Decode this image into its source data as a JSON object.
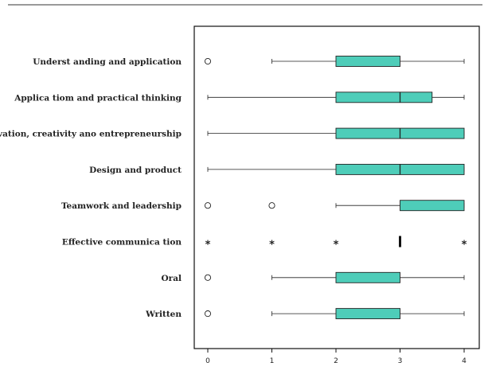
{
  "chart_data": {
    "type": "boxplot",
    "orientation": "horizontal",
    "xlim": [
      -0.2,
      4.2
    ],
    "xticks": [
      "0",
      "1",
      "2",
      "3",
      "4"
    ],
    "box_color": "#4ecdb9",
    "categories": [
      "Underst anding and application",
      "Applica tiom and practical thinking",
      "Innovation, creativity ano entrepreneurship",
      "Design and product",
      "Teamwork and leadership",
      "Effective communica tion",
      "Oral",
      "Written"
    ],
    "boxes": [
      {
        "whisker_low": 1,
        "q1": 2,
        "median": 3,
        "q3": 3,
        "whisker_high": 4,
        "outliers": [
          0
        ],
        "extremes": []
      },
      {
        "whisker_low": 0,
        "q1": 2,
        "median": 3,
        "q3": 3.5,
        "whisker_high": 4,
        "outliers": [],
        "extremes": []
      },
      {
        "whisker_low": 0,
        "q1": 2,
        "median": 3,
        "q3": 4,
        "whisker_high": 4,
        "outliers": [],
        "extremes": []
      },
      {
        "whisker_low": 0,
        "q1": 2,
        "median": 3,
        "q3": 4,
        "whisker_high": 4,
        "outliers": [],
        "extremes": []
      },
      {
        "whisker_low": 2,
        "q1": 3,
        "median": 3,
        "q3": 4,
        "whisker_high": 4,
        "outliers": [
          0,
          1
        ],
        "extremes": []
      },
      {
        "whisker_low": 3,
        "q1": 3,
        "median": 3,
        "q3": 3,
        "whisker_high": 3,
        "outliers": [],
        "extremes": [
          0,
          1,
          2,
          4
        ]
      },
      {
        "whisker_low": 1,
        "q1": 2,
        "median": 3,
        "q3": 3,
        "whisker_high": 4,
        "outliers": [
          0
        ],
        "extremes": []
      },
      {
        "whisker_low": 1,
        "q1": 2,
        "median": 3,
        "q3": 3,
        "whisker_high": 4,
        "outliers": [
          0
        ],
        "extremes": []
      }
    ]
  }
}
